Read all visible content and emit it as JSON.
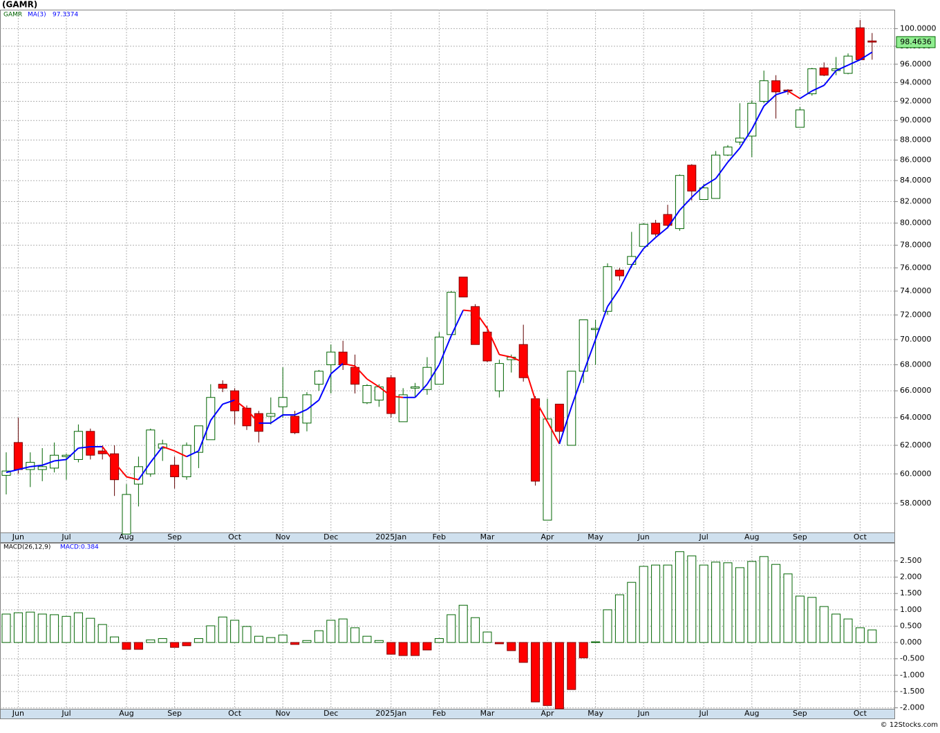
{
  "chart_data": [
    {
      "type": "candlestick",
      "title": "(GAMR)",
      "name": "GAMR",
      "log": true,
      "grid": true,
      "up_color": "#ffffff",
      "down_color": "#ff0000",
      "outline_color": "#006400",
      "categories": [
        null,
        "Jun",
        null,
        null,
        null,
        "Jul",
        null,
        null,
        null,
        null,
        "Aug",
        null,
        null,
        null,
        "Sep",
        null,
        null,
        null,
        null,
        "Oct",
        null,
        null,
        null,
        "Nov",
        null,
        null,
        null,
        "Dec",
        null,
        null,
        null,
        null,
        "2025Jan",
        null,
        null,
        null,
        "Feb",
        null,
        null,
        null,
        "Mar",
        null,
        null,
        null,
        null,
        "Apr",
        null,
        null,
        null,
        "May",
        null,
        null,
        null,
        "Jun",
        null,
        null,
        null,
        null,
        "Jul",
        null,
        null,
        null,
        "Aug",
        null,
        null,
        null,
        "Sep",
        null,
        null,
        null,
        null,
        "Oct",
        null
      ],
      "open": [
        59.9,
        62.2,
        60.3,
        60.3,
        60.4,
        61.2,
        61.0,
        63.0,
        61.6,
        61.4,
        56.0,
        59.3,
        60.0,
        61.8,
        60.6,
        59.8,
        61.5,
        62.4,
        66.5,
        66.0,
        64.7,
        64.3,
        64.1,
        64.8,
        64.1,
        63.6,
        66.5,
        68.0,
        69.0,
        67.8,
        65.1,
        65.3,
        67.0,
        63.7,
        66.2,
        66.1,
        66.5,
        70.4,
        75.2,
        72.7,
        70.6,
        66.0,
        68.4,
        69.6,
        65.4,
        56.9,
        65.0,
        62.0,
        67.5,
        70.8,
        72.3,
        75.8,
        76.3,
        77.9,
        80.0,
        80.8,
        79.5,
        85.5,
        82.2,
        82.3,
        86.5,
        87.8,
        88.4,
        92.0,
        94.2,
        93.2,
        89.3,
        92.8,
        95.6,
        95.3,
        95.0,
        100.1,
        98.6
      ],
      "high": [
        61.5,
        64.0,
        61.5,
        61.8,
        62.2,
        61.4,
        63.5,
        63.2,
        62.0,
        62.0,
        59.3,
        61.2,
        63.2,
        62.4,
        61.2,
        62.2,
        63.4,
        66.5,
        66.8,
        66.2,
        64.9,
        64.5,
        65.5,
        67.8,
        64.5,
        65.9,
        67.6,
        69.6,
        69.9,
        68.8,
        66.5,
        66.5,
        67.2,
        66.2,
        66.6,
        68.6,
        70.6,
        74.0,
        75.2,
        72.9,
        71.1,
        68.4,
        68.8,
        71.2,
        65.6,
        65.4,
        65.0,
        67.5,
        71.6,
        71.6,
        76.4,
        76.0,
        79.2,
        80.0,
        80.3,
        81.7,
        84.6,
        85.6,
        83.7,
        86.9,
        87.5,
        91.8,
        92.1,
        95.3,
        94.8,
        93.3,
        91.4,
        95.6,
        96.2,
        96.8,
        97.2,
        101.0,
        99.5
      ],
      "low": [
        58.6,
        60.0,
        59.1,
        59.5,
        60.1,
        59.6,
        60.8,
        61.0,
        61.0,
        58.5,
        56.0,
        57.8,
        59.8,
        60.9,
        59.0,
        59.6,
        60.4,
        62.4,
        65.9,
        63.5,
        63.1,
        62.2,
        63.5,
        64.0,
        62.8,
        63.0,
        66.0,
        65.8,
        67.6,
        65.8,
        65.0,
        64.8,
        64.0,
        63.7,
        65.5,
        65.7,
        66.5,
        70.4,
        73.5,
        69.6,
        68.2,
        65.5,
        67.4,
        66.7,
        59.2,
        56.9,
        62.1,
        62.0,
        66.6,
        68.0,
        72.0,
        74.9,
        76.0,
        77.9,
        78.8,
        79.5,
        79.3,
        82.1,
        82.2,
        82.3,
        86.4,
        87.5,
        86.3,
        91.8,
        90.2,
        92.7,
        89.3,
        92.6,
        94.7,
        94.8,
        94.9,
        96.5,
        96.5
      ],
      "close": [
        60.2,
        60.3,
        60.8,
        60.5,
        61.3,
        61.3,
        63.0,
        61.3,
        61.4,
        59.6,
        58.6,
        60.5,
        63.1,
        62.1,
        59.8,
        62.0,
        63.4,
        65.5,
        66.2,
        64.5,
        63.4,
        63.0,
        64.3,
        65.5,
        62.9,
        65.7,
        67.5,
        69.0,
        68.0,
        66.5,
        66.4,
        66.3,
        64.3,
        65.7,
        66.3,
        67.8,
        70.2,
        73.9,
        73.5,
        69.6,
        68.3,
        68.1,
        68.6,
        67.0,
        59.5,
        63.9,
        63.0,
        67.5,
        71.6,
        70.9,
        76.1,
        75.3,
        77.0,
        79.9,
        79.0,
        79.8,
        84.5,
        83.0,
        83.3,
        86.5,
        87.3,
        88.2,
        91.8,
        94.2,
        93.0,
        93.1,
        91.1,
        95.5,
        94.8,
        95.5,
        96.9,
        96.5,
        98.4636
      ],
      "ma": {
        "name": "MA(3)",
        "color": "#0000ff",
        "down_color": "#ff0000",
        "values": [
          60.1,
          60.3,
          60.5,
          60.6,
          60.9,
          61.0,
          61.8,
          61.9,
          61.9,
          60.8,
          59.8,
          59.6,
          60.8,
          61.9,
          61.6,
          61.2,
          61.6,
          63.8,
          65.0,
          65.3,
          64.6,
          63.6,
          63.6,
          64.2,
          64.2,
          64.6,
          65.3,
          67.3,
          68.1,
          67.9,
          66.9,
          66.3,
          65.6,
          65.5,
          65.5,
          66.5,
          68.0,
          70.3,
          72.4,
          72.3,
          70.9,
          68.8,
          68.6,
          68.2,
          65.3,
          63.7,
          62.1,
          64.8,
          67.4,
          70.0,
          72.7,
          74.2,
          76.2,
          77.7,
          78.7,
          79.6,
          81.2,
          82.4,
          83.5,
          84.2,
          85.8,
          87.2,
          89.1,
          91.5,
          92.7,
          93.1,
          92.3,
          93.1,
          93.7,
          95.3,
          95.9,
          96.5,
          97.3374
        ]
      },
      "ylim": [
        56.1,
        102.2
      ],
      "yticks": [
        {
          "value": 58,
          "label": "58.0000"
        },
        {
          "value": 60,
          "label": "60.0000"
        },
        {
          "value": 62,
          "label": "62.0000"
        },
        {
          "value": 64,
          "label": "64.0000"
        },
        {
          "value": 66,
          "label": "66.0000"
        },
        {
          "value": 68,
          "label": "68.0000"
        },
        {
          "value": 70,
          "label": "70.0000"
        },
        {
          "value": 72,
          "label": "72.0000"
        },
        {
          "value": 74,
          "label": "74.0000"
        },
        {
          "value": 76,
          "label": "76.0000"
        },
        {
          "value": 78,
          "label": "78.0000"
        },
        {
          "value": 80,
          "label": "80.0000"
        },
        {
          "value": 82,
          "label": "82.0000"
        },
        {
          "value": 84,
          "label": "84.0000"
        },
        {
          "value": 86,
          "label": "86.0000"
        },
        {
          "value": 88,
          "label": "88.0000"
        },
        {
          "value": 90,
          "label": "90.0000"
        },
        {
          "value": 92,
          "label": "92.0000"
        },
        {
          "value": 94,
          "label": "94.0000"
        },
        {
          "value": 96,
          "label": "96.0000"
        },
        {
          "value": 98,
          "label": "98.0000"
        },
        {
          "value": 100,
          "label": "100.0000"
        }
      ]
    },
    {
      "type": "bar",
      "title": "MACD(26,12,9)",
      "legend": "MACD:0.384",
      "up_color": "#ffffff",
      "down_color": "#ff0000",
      "outline_color": "#006400",
      "grid": true,
      "values": [
        0.87,
        0.91,
        0.93,
        0.87,
        0.85,
        0.8,
        0.91,
        0.74,
        0.55,
        0.17,
        -0.21,
        -0.21,
        0.08,
        0.12,
        -0.15,
        -0.1,
        0.12,
        0.51,
        0.78,
        0.68,
        0.49,
        0.19,
        0.15,
        0.23,
        -0.06,
        0.06,
        0.36,
        0.68,
        0.72,
        0.45,
        0.19,
        0.06,
        -0.36,
        -0.4,
        -0.4,
        -0.23,
        0.12,
        0.85,
        1.14,
        0.76,
        0.32,
        -0.04,
        -0.25,
        -0.61,
        -1.82,
        -1.93,
        -2.05,
        -1.44,
        -0.47,
        0.02,
        1.0,
        1.46,
        1.84,
        2.33,
        2.37,
        2.37,
        2.78,
        2.65,
        2.37,
        2.46,
        2.44,
        2.29,
        2.48,
        2.63,
        2.39,
        2.1,
        1.42,
        1.38,
        1.1,
        0.87,
        0.72,
        0.45,
        0.384
      ],
      "ylim": [
        -2.03,
        3.05
      ],
      "yticks": [
        {
          "value": -2,
          "label": "-2.000"
        },
        {
          "value": -1.5,
          "label": "-1.500"
        },
        {
          "value": -1,
          "label": "-1.000"
        },
        {
          "value": -0.5,
          "label": "-0.500"
        },
        {
          "value": 0,
          "label": "0.000"
        },
        {
          "value": 0.5,
          "label": "0.500"
        },
        {
          "value": 1,
          "label": "1.000"
        },
        {
          "value": 1.5,
          "label": "1.500"
        },
        {
          "value": 2,
          "label": "2.000"
        },
        {
          "value": 2.5,
          "label": "2.500"
        }
      ]
    }
  ],
  "footer": "© 12Stocks.com"
}
